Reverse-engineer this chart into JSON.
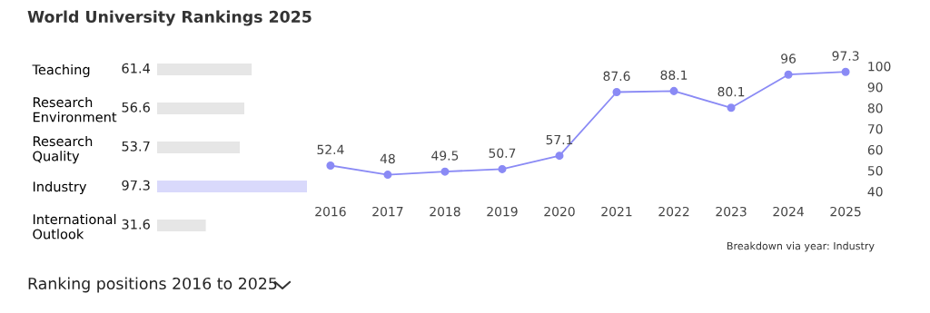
{
  "chart_data": [
    {
      "type": "bar",
      "orientation": "horizontal",
      "title": "World University Rankings 2025",
      "categories": [
        "Teaching",
        "Research\nEnvironment",
        "Research\nQuality",
        "Industry",
        "International\nOutlook"
      ],
      "values": [
        61.4,
        56.6,
        53.7,
        97.3,
        31.6
      ],
      "colors": [
        "#e6e6e6",
        "#e6e6e6",
        "#e6e6e6",
        "#d9d9fb",
        "#e6e6e6"
      ],
      "data_labels": true,
      "tick_labels": "y",
      "annotations": [
        "Ranking positions 2016 to 2025"
      ]
    },
    {
      "type": "line",
      "categories": [
        "2016",
        "2017",
        "2018",
        "2019",
        "2020",
        "2021",
        "2022",
        "2023",
        "2024",
        "2025"
      ],
      "series": [
        {
          "color": "#8a8af5",
          "values": [
            52.4,
            48,
            49.5,
            50.7,
            57.1,
            87.6,
            88.1,
            80.1,
            96,
            97.3
          ]
        }
      ],
      "ylim": [
        40,
        100
      ],
      "yticks": [
        40,
        50,
        60,
        70,
        80,
        90,
        100
      ],
      "marker": "circle",
      "data_labels": true,
      "grid": false,
      "legend": false,
      "annotations": [
        "Breakdown via year: Industry"
      ]
    }
  ]
}
